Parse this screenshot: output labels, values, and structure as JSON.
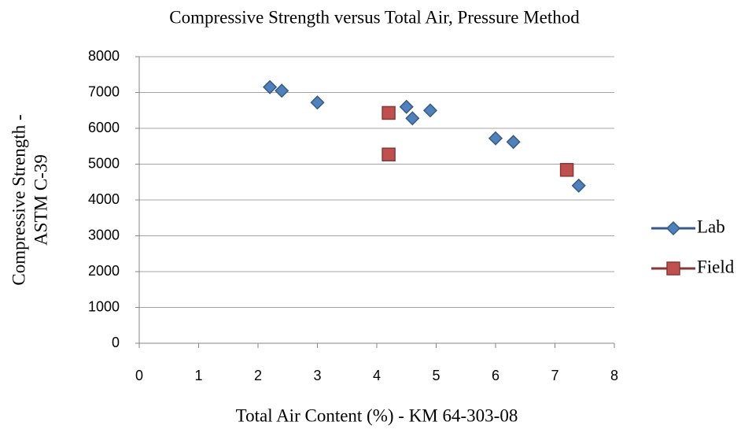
{
  "chart_data": {
    "type": "scatter",
    "title": "Compressive Strength versus Total Air, Pressure Method",
    "xlabel": "Total Air Content (%) - KM 64-303-08",
    "ylabel": [
      "Compressive Strength -",
      "ASTM C-39"
    ],
    "xlim": [
      0,
      8
    ],
    "xticks": [
      0,
      1,
      2,
      3,
      4,
      5,
      6,
      7,
      8
    ],
    "ylim": [
      0,
      8000
    ],
    "yticks": [
      0,
      1000,
      2000,
      3000,
      4000,
      5000,
      6000,
      7000,
      8000
    ],
    "grid": true,
    "legend": "right",
    "series": [
      {
        "name": "Lab",
        "color": "#4f81bd",
        "marker": "diamond",
        "x": [
          2.2,
          2.4,
          3.0,
          4.5,
          4.6,
          4.9,
          6.0,
          6.3,
          7.4
        ],
        "values": [
          7150,
          7050,
          6720,
          6600,
          6280,
          6500,
          5720,
          5620,
          4400
        ]
      },
      {
        "name": "Field",
        "color": "#c0504d",
        "marker": "square",
        "x": [
          4.2,
          4.2,
          7.2
        ],
        "values": [
          6430,
          5270,
          4840
        ]
      }
    ]
  }
}
